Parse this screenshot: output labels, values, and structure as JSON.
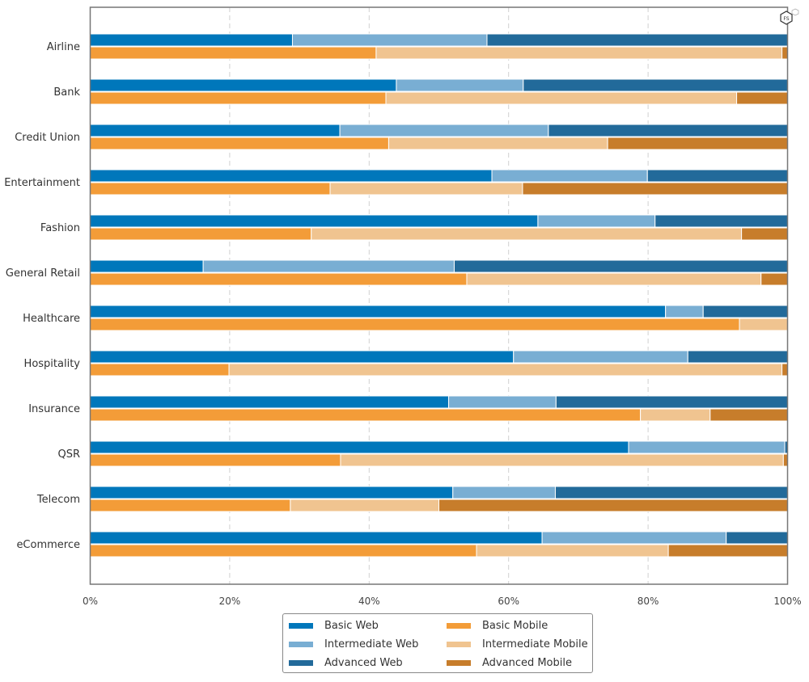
{
  "chart_data": {
    "type": "bar",
    "orientation": "horizontal",
    "stacked": "percent",
    "title": "",
    "xlabel": "",
    "ylabel": "",
    "xlim": [
      0,
      100
    ],
    "x_ticks": [
      "0%",
      "20%",
      "40%",
      "60%",
      "80%",
      "100%"
    ],
    "grid": "vertical dashed",
    "legend_position": "bottom-center",
    "categories": [
      "Airline",
      "Bank",
      "Credit Union",
      "Entertainment",
      "Fashion",
      "General Retail",
      "Healthcare",
      "Hospitality",
      "Insurance",
      "QSR",
      "Telecom",
      "eCommerce"
    ],
    "groups": [
      {
        "name": "Web",
        "series": [
          {
            "name": "Basic Web",
            "color": "#0077BB",
            "values": [
              29.0,
              43.9,
              35.8,
              57.6,
              64.2,
              16.2,
              82.5,
              60.7,
              51.4,
              77.2,
              52.0,
              64.8
            ]
          },
          {
            "name": "Intermediate Web",
            "color": "#79AED3",
            "values": [
              27.9,
              18.2,
              29.9,
              22.3,
              16.8,
              36.0,
              5.4,
              25.0,
              15.4,
              22.4,
              14.7,
              26.4
            ]
          },
          {
            "name": "Advanced Web",
            "color": "#226A9A",
            "values": [
              43.1,
              37.9,
              34.3,
              20.1,
              19.0,
              47.8,
              12.1,
              14.3,
              33.2,
              0.4,
              33.3,
              8.8
            ]
          }
        ]
      },
      {
        "name": "Mobile",
        "series": [
          {
            "name": "Basic Mobile",
            "color": "#F39C38",
            "values": [
              41.0,
              42.4,
              42.8,
              34.4,
              31.7,
              54.0,
              93.1,
              19.9,
              78.9,
              35.9,
              28.7,
              55.4
            ]
          },
          {
            "name": "Intermediate Mobile",
            "color": "#F0C490",
            "values": [
              58.2,
              50.3,
              31.4,
              27.6,
              61.7,
              42.2,
              6.9,
              79.3,
              10.0,
              63.5,
              21.3,
              27.5
            ]
          },
          {
            "name": "Advanced Mobile",
            "color": "#C77D2B",
            "values": [
              0.8,
              7.3,
              25.8,
              38.0,
              6.6,
              3.8,
              0.0,
              0.8,
              11.1,
              0.6,
              50.0,
              17.1
            ]
          }
        ]
      }
    ]
  },
  "legend": {
    "items": [
      {
        "label": "Basic Web",
        "color": "#0077BB"
      },
      {
        "label": "Intermediate Web",
        "color": "#79AED3"
      },
      {
        "label": "Advanced Web",
        "color": "#226A9A"
      },
      {
        "label": "Basic Mobile",
        "color": "#F39C38"
      },
      {
        "label": "Intermediate Mobile",
        "color": "#F0C490"
      },
      {
        "label": "Advanced Mobile",
        "color": "#C77D2B"
      }
    ]
  },
  "logo": {
    "icon": "hexagon-logo-icon",
    "text": "FS"
  }
}
